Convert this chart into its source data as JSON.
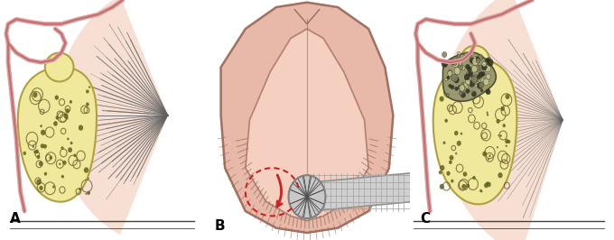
{
  "title": "",
  "panel_labels": [
    "A",
    "B",
    "C"
  ],
  "label_fontsize": 11,
  "label_fontweight": "bold",
  "background_color": "#ffffff",
  "figsize": [
    6.8,
    2.66
  ],
  "dpi": 100,
  "colors": {
    "bone_yellow": "#f0e89a",
    "bone_edge": "#b0a040",
    "gum_pink": "#f0c8b8",
    "gum_dark": "#c89080",
    "jaw_pink": "#f0c8b8",
    "jaw_fan_pink": "#f0c0a8",
    "wire_pink": "#e0a0a0",
    "wire_dark": "#c07070",
    "graft_dark": "#808060",
    "graft_edge": "#505030",
    "tongue_light": "#f5d0c0",
    "tongue_mid": "#e8b8a8",
    "tongue_dark": "#c09080",
    "bur_gray": "#d0d0d0",
    "bur_dark": "#909090",
    "incision_red": "#cc2222",
    "line_dark": "#404040",
    "fiber_dark": "#606060"
  }
}
